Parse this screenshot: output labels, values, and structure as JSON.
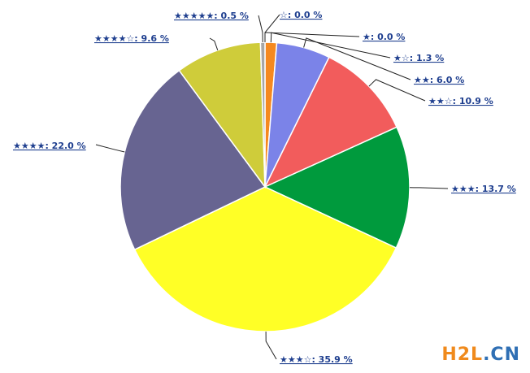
{
  "chart_data": {
    "type": "pie",
    "title": "",
    "start_angle_deg": 0,
    "direction": "clockwise",
    "slices": [
      {
        "label": "☆: 0.0 %",
        "value": 0.0,
        "color": "#f4b183"
      },
      {
        "label": "★: 0.0 %",
        "value": 0.0,
        "color": "#d9d9d9"
      },
      {
        "label": "★☆: 1.3 %",
        "value": 1.3,
        "color": "#f5891f"
      },
      {
        "label": "★★: 6.0 %",
        "value": 6.0,
        "color": "#7b83e8"
      },
      {
        "label": "★★☆: 10.9 %",
        "value": 10.9,
        "color": "#f25c5c"
      },
      {
        "label": "★★★: 13.7 %",
        "value": 13.7,
        "color": "#009a3d"
      },
      {
        "label": "★★★☆: 35.9 %",
        "value": 35.9,
        "color": "#ffff26"
      },
      {
        "label": "★★★★: 22.0 %",
        "value": 22.0,
        "color": "#676491"
      },
      {
        "label": "★★★★☆: 9.6 %",
        "value": 9.6,
        "color": "#cfcc3a"
      },
      {
        "label": "★★★★★: 0.5 %",
        "value": 0.5,
        "color": "#a6a6a6"
      }
    ]
  },
  "watermark": {
    "part1": "H2L",
    "part2": ".CN"
  }
}
